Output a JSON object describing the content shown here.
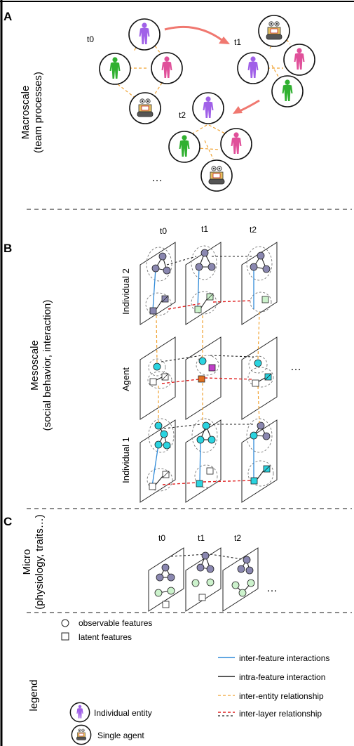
{
  "panels": {
    "a": {
      "letter": "A",
      "title_line1": "Macroscale",
      "title_line2": "(team processes)",
      "times": [
        "t0",
        "t1",
        "t2"
      ],
      "ellipsis": "…"
    },
    "b": {
      "letter": "B",
      "title_line1": "Mesoscale",
      "title_line2": "(social behavior, interaction)",
      "times": [
        "t0",
        "t1",
        "t2"
      ],
      "layers": [
        "Individual 2",
        "Agent",
        "Individual 1"
      ],
      "ellipsis": "…"
    },
    "c": {
      "letter": "C",
      "title_line1": "Micro",
      "title_line2": "(physiology, traits…)",
      "times": [
        "t0",
        "t1",
        "t2"
      ],
      "ellipsis": "…"
    }
  },
  "legend": {
    "title": "legend",
    "observable": "observable features",
    "latent": "latent features",
    "individual": "Individual entity",
    "agent": "Single agent",
    "inter_feature": "inter-feature interactions",
    "intra_feature": "intra-feature interaction",
    "inter_entity": "inter-entity relationship",
    "inter_layer": "inter-layer relationship"
  },
  "colors": {
    "purple": "#a060e8",
    "pink": "#e0509a",
    "green": "#30b030",
    "node_gray": "#8a87b0",
    "cyan": "#2ad4e0",
    "latent_light_green": "#ccf2cc",
    "orange_latent": "#e07020",
    "magenta_latent": "#c040c8",
    "blue_line": "#2f8ad8",
    "orange_dash": "#f0a232",
    "red_dash": "#e02020",
    "arrow": "#f07870"
  }
}
